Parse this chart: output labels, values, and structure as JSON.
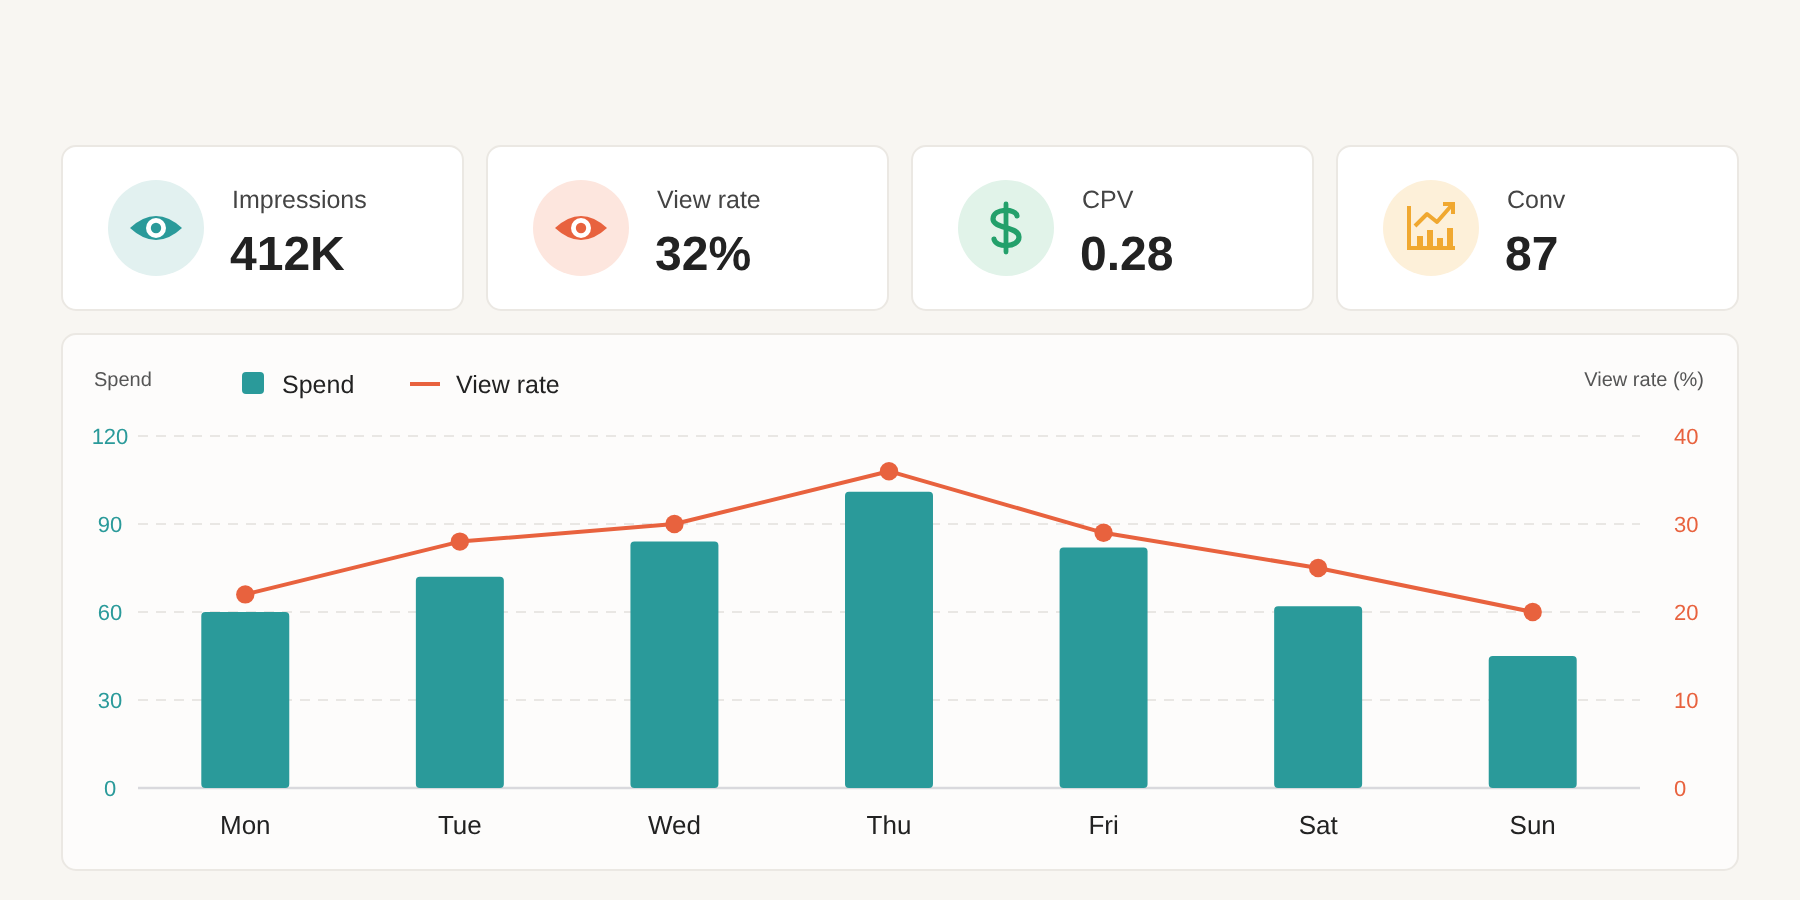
{
  "chart_data": [
    {
      "type": "other",
      "categories": [
        "Impressions",
        "View rate",
        "CPV",
        "Conv"
      ],
      "value_labels": [
        "412K",
        "32%",
        "0.28",
        "87"
      ]
    },
    {
      "type": "bar",
      "categories": [
        "Mon",
        "Tue",
        "Wed",
        "Thu",
        "Fri",
        "Sat",
        "Sun"
      ],
      "ylabel": "Spend",
      "y2label": "View rate (%)",
      "series": [
        {
          "name": "Spend",
          "color": "#2a9a9a",
          "values": [
            60,
            72,
            84,
            101,
            82,
            62,
            45
          ]
        },
        {
          "name": "View rate",
          "type": "line",
          "axis": "y2",
          "color": "#e8623e",
          "values": [
            22,
            28,
            30,
            36,
            29,
            25,
            20
          ]
        }
      ],
      "ylim": [
        0,
        120
      ],
      "yticks": [
        0,
        30,
        60,
        90,
        120
      ],
      "y2lim": [
        0,
        40
      ],
      "y2ticks": [
        0,
        10,
        20,
        30,
        40
      ],
      "grid": "y",
      "legend": "top left",
      "marker": "circle",
      "line_style": "solid"
    }
  ]
}
